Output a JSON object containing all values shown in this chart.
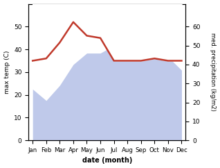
{
  "months": [
    "Jan",
    "Feb",
    "Mar",
    "Apr",
    "May",
    "Jun",
    "Jul",
    "Aug",
    "Sep",
    "Oct",
    "Nov",
    "Dec"
  ],
  "max_temp": [
    35,
    36,
    43,
    52,
    46,
    45,
    35,
    35,
    35,
    36,
    35,
    35
  ],
  "precipitation": [
    27,
    21,
    29,
    40,
    46,
    46,
    50,
    52,
    53,
    44,
    44,
    37
  ],
  "temp_color": "#c0392b",
  "precip_fill_color": "#b8c4e8",
  "temp_ylim": [
    0,
    60
  ],
  "precip_ylim": [
    0,
    72
  ],
  "xlabel": "date (month)",
  "ylabel_left": "max temp (C)",
  "ylabel_right": "med. precipitation (kg/m2)",
  "temp_yticks": [
    0,
    10,
    20,
    30,
    40,
    50
  ],
  "precip_yticks": [
    0,
    10,
    20,
    30,
    40,
    50,
    60
  ],
  "figsize": [
    3.18,
    2.42
  ],
  "dpi": 100
}
